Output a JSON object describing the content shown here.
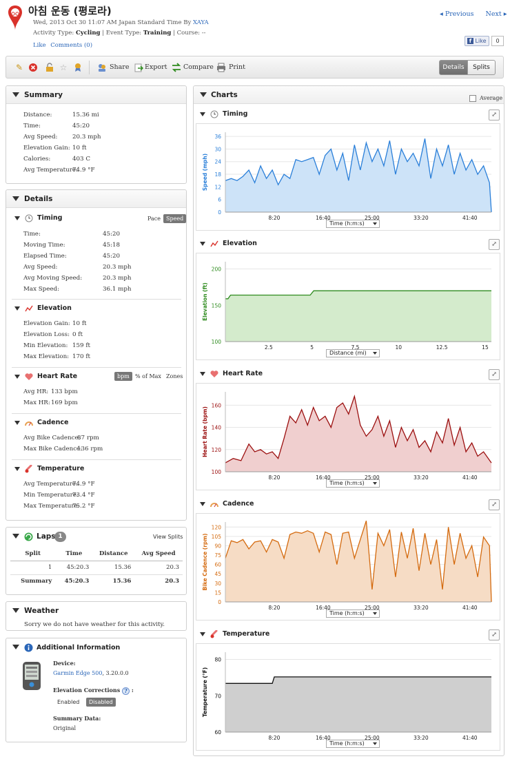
{
  "header": {
    "title": "아침 운동 (평로라)",
    "date_line": "Wed, 2013 Oct 30 11:07 AM Japan Standard Time By",
    "author": "XAYA",
    "activity_type_label": "Activity Type:",
    "activity_type": "Cycling",
    "event_type_label": "| Event Type:",
    "event_type": "Training",
    "course_label": "| Course:",
    "course": "--",
    "like_link": "Like",
    "comments_link": "Comments (0)",
    "previous": "Previous",
    "next": "Next",
    "fb_like": "Like",
    "fb_count": "0"
  },
  "toolbar": {
    "share": "Share",
    "export": "Export",
    "compare": "Compare",
    "print": "Print",
    "details": "Details",
    "splits": "Splits"
  },
  "summary": {
    "title": "Summary",
    "rows": [
      {
        "label": "Distance:",
        "value": "15.36 mi"
      },
      {
        "label": "Time:",
        "value": "45:20"
      },
      {
        "label": "Avg Speed:",
        "value": "20.3 mph"
      },
      {
        "label": "Elevation Gain:",
        "value": "10 ft"
      },
      {
        "label": "Calories:",
        "value": "403 C"
      },
      {
        "label": "Avg Temperature:",
        "value": "74.9 °F"
      }
    ]
  },
  "details": {
    "title": "Details",
    "timing": {
      "title": "Timing",
      "pace": "Pace",
      "speed": "Speed",
      "rows": [
        {
          "label": "Time:",
          "value": "45:20"
        },
        {
          "label": "Moving Time:",
          "value": "45:18"
        },
        {
          "label": "Elapsed Time:",
          "value": "45:20"
        },
        {
          "label": "Avg Speed:",
          "value": "20.3 mph"
        },
        {
          "label": "Avg Moving Speed:",
          "value": "20.3 mph"
        },
        {
          "label": "Max Speed:",
          "value": "36.1 mph"
        }
      ]
    },
    "elevation": {
      "title": "Elevation",
      "rows": [
        {
          "label": "Elevation Gain:",
          "value": "10 ft"
        },
        {
          "label": "Elevation Loss:",
          "value": "0 ft"
        },
        {
          "label": "Min Elevation:",
          "value": "159 ft"
        },
        {
          "label": "Max Elevation:",
          "value": "170 ft"
        }
      ]
    },
    "heart_rate": {
      "title": "Heart Rate",
      "bpm": "bpm",
      "pct_max": "% of Max",
      "zones": "Zones",
      "rows": [
        {
          "label": "Avg HR:",
          "value": "133 bpm"
        },
        {
          "label": "Max HR:",
          "value": "169 bpm"
        }
      ]
    },
    "cadence": {
      "title": "Cadence",
      "rows": [
        {
          "label": "Avg Bike Cadence:",
          "value": "87 rpm"
        },
        {
          "label": "Max Bike Cadence:",
          "value": "136 rpm"
        }
      ]
    },
    "temperature": {
      "title": "Temperature",
      "rows": [
        {
          "label": "Avg Temperature:",
          "value": "74.9 °F"
        },
        {
          "label": "Min Temperature:",
          "value": "73.4 °F"
        },
        {
          "label": "Max Temperature:",
          "value": "75.2 °F"
        }
      ]
    }
  },
  "laps": {
    "title": "Laps",
    "count": "1",
    "view_splits": "View Splits",
    "headers": [
      "Split",
      "Time",
      "Distance",
      "Avg Speed"
    ],
    "rows": [
      [
        "1",
        "45:20.3",
        "15.36",
        "20.3"
      ]
    ],
    "summary_row": [
      "Summary",
      "45:20.3",
      "15.36",
      "20.3"
    ]
  },
  "weather": {
    "title": "Weather",
    "text": "Sorry we do not have weather for this activity."
  },
  "additional": {
    "title": "Additional Information",
    "device_label": "Device:",
    "device_link": "Garmin Edge 500",
    "device_version": ", 3.20.0.0",
    "elev_corr_label": "Elevation Corrections",
    "elev_corr_colon": ":",
    "enabled": "Enabled",
    "disabled": "Disabled",
    "summary_data_label": "Summary Data:",
    "summary_data_value": "Original"
  },
  "charts_panel": {
    "title": "Charts",
    "average": "Average"
  },
  "chart_data": [
    {
      "title": "Timing",
      "type": "area",
      "ylabel": "Speed (mph)",
      "xlabel": "Time (h:m:s)",
      "color": "#2a7fd9",
      "fill": "#cde3f8",
      "yticks": [
        "0",
        "6",
        "12",
        "18",
        "24",
        "30",
        "36"
      ],
      "ylim": [
        0,
        38
      ],
      "xticks": [
        "8:20",
        "16:40",
        "25:00",
        "33:20",
        "41:40"
      ],
      "xtick_vals": [
        500,
        1000,
        1500,
        2000,
        2500
      ],
      "xlim": [
        0,
        2720
      ],
      "x": [
        0,
        60,
        120,
        180,
        240,
        300,
        360,
        420,
        480,
        540,
        600,
        660,
        720,
        780,
        840,
        900,
        960,
        1020,
        1080,
        1140,
        1200,
        1260,
        1320,
        1380,
        1440,
        1500,
        1560,
        1620,
        1680,
        1740,
        1800,
        1860,
        1920,
        1980,
        2040,
        2100,
        2160,
        2220,
        2280,
        2340,
        2400,
        2460,
        2520,
        2580,
        2640,
        2700,
        2720
      ],
      "y": [
        15,
        16,
        15,
        17,
        20,
        14,
        22,
        16,
        20,
        13,
        18,
        16,
        25,
        24,
        25,
        26,
        18,
        27,
        30,
        20,
        28,
        15,
        32,
        20,
        33,
        24,
        30,
        22,
        34,
        18,
        30,
        24,
        28,
        22,
        35,
        16,
        30,
        22,
        32,
        18,
        28,
        20,
        25,
        18,
        22,
        14,
        0
      ]
    },
    {
      "title": "Elevation",
      "type": "area",
      "ylabel": "Elevation (ft)",
      "xlabel": "Distance (mi)",
      "color": "#2e8b1e",
      "fill": "#d4ebcc",
      "yticks": [
        "100",
        "150",
        "200"
      ],
      "ylim": [
        100,
        210
      ],
      "xticks": [
        "2.5",
        "5",
        "7.5",
        "10",
        "12.5",
        "15"
      ],
      "xtick_vals": [
        2.5,
        5,
        7.5,
        10,
        12.5,
        15
      ],
      "xlim": [
        0,
        15.36
      ],
      "x": [
        0,
        0.15,
        0.3,
        4.9,
        5.1,
        15.36
      ],
      "y": [
        159,
        159,
        164,
        164,
        170,
        170
      ]
    },
    {
      "title": "Heart Rate",
      "type": "area",
      "ylabel": "Heart Rate (bpm)",
      "xlabel": "Time (h:m:s)",
      "color": "#9b0f0f",
      "fill": "#f0cfcf",
      "yticks": [
        "100",
        "120",
        "140",
        "160"
      ],
      "ylim": [
        100,
        172
      ],
      "xticks": [
        "8:20",
        "16:40",
        "25:00",
        "33:20",
        "41:40"
      ],
      "xtick_vals": [
        500,
        1000,
        1500,
        2000,
        2500
      ],
      "xlim": [
        0,
        2720
      ],
      "x": [
        0,
        80,
        160,
        240,
        300,
        360,
        420,
        480,
        540,
        600,
        660,
        720,
        780,
        840,
        900,
        960,
        1020,
        1080,
        1140,
        1200,
        1260,
        1320,
        1380,
        1440,
        1500,
        1560,
        1620,
        1680,
        1740,
        1800,
        1860,
        1920,
        1980,
        2040,
        2100,
        2160,
        2220,
        2280,
        2340,
        2400,
        2460,
        2520,
        2580,
        2640,
        2720
      ],
      "y": [
        108,
        112,
        110,
        125,
        118,
        120,
        116,
        118,
        112,
        130,
        150,
        144,
        156,
        142,
        158,
        146,
        150,
        140,
        158,
        162,
        152,
        168,
        142,
        132,
        138,
        150,
        132,
        146,
        122,
        140,
        128,
        138,
        122,
        128,
        118,
        136,
        126,
        148,
        124,
        140,
        118,
        126,
        114,
        118,
        108
      ]
    },
    {
      "title": "Cadence",
      "type": "area",
      "ylabel": "Bike Cadence (rpm)",
      "xlabel": "Time (h:m:s)",
      "color": "#d46a0e",
      "fill": "#f6dcc5",
      "yticks": [
        "0",
        "15",
        "30",
        "45",
        "60",
        "75",
        "90",
        "105",
        "120"
      ],
      "ylim": [
        0,
        128
      ],
      "xticks": [
        "8:20",
        "16:40",
        "25:00",
        "33:20",
        "41:40"
      ],
      "xtick_vals": [
        500,
        1000,
        1500,
        2000,
        2500
      ],
      "xlim": [
        0,
        2720
      ],
      "x": [
        0,
        60,
        120,
        180,
        240,
        300,
        360,
        420,
        480,
        540,
        600,
        660,
        720,
        780,
        840,
        900,
        960,
        1020,
        1080,
        1140,
        1200,
        1260,
        1320,
        1380,
        1440,
        1500,
        1560,
        1620,
        1680,
        1740,
        1800,
        1860,
        1920,
        1980,
        2040,
        2100,
        2160,
        2220,
        2280,
        2340,
        2400,
        2460,
        2520,
        2580,
        2640,
        2700,
        2720
      ],
      "y": [
        70,
        98,
        95,
        100,
        85,
        96,
        98,
        80,
        100,
        96,
        70,
        108,
        112,
        110,
        114,
        110,
        80,
        112,
        108,
        60,
        110,
        112,
        70,
        100,
        130,
        20,
        110,
        90,
        116,
        40,
        112,
        70,
        118,
        50,
        110,
        60,
        100,
        20,
        120,
        60,
        110,
        70,
        90,
        40,
        104,
        90,
        0
      ]
    },
    {
      "title": "Temperature",
      "type": "area",
      "ylabel": "Temperature (°F)",
      "xlabel": "Time (h:m:s)",
      "color": "#111111",
      "fill": "#cfcfcf",
      "yticks": [
        "60",
        "70",
        "80"
      ],
      "ylim": [
        60,
        82
      ],
      "xticks": [
        "8:20",
        "16:40",
        "25:00",
        "33:20",
        "41:40"
      ],
      "xtick_vals": [
        500,
        1000,
        1500,
        2000,
        2500
      ],
      "xlim": [
        0,
        2720
      ],
      "x": [
        0,
        480,
        500,
        2720
      ],
      "y": [
        73.4,
        73.4,
        75.2,
        75.2
      ]
    }
  ]
}
